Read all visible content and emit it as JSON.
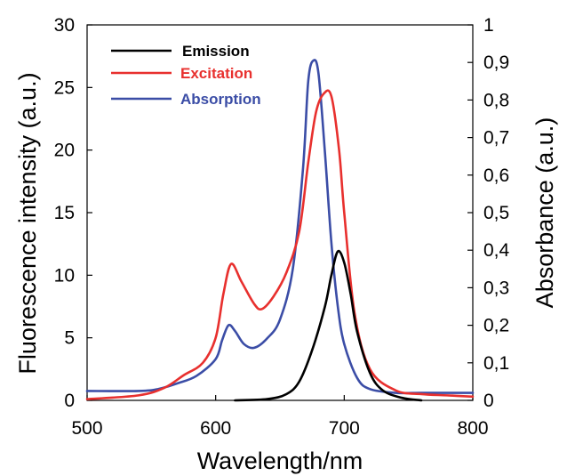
{
  "chart_data": {
    "type": "line",
    "title": "",
    "xlabel": "Wavelength/nm",
    "ylabel_left": "Fluorescence intensity (a.u.)",
    "ylabel_right": "Absorbance (a.u.)",
    "xlim": [
      500,
      800
    ],
    "ylim_left": [
      0,
      30
    ],
    "ylim_right": [
      0,
      1
    ],
    "x_ticks": [
      500,
      600,
      700,
      800
    ],
    "x_tick_labels": [
      "500",
      "600",
      "700",
      "800"
    ],
    "y_left_ticks": [
      0,
      5,
      10,
      15,
      20,
      25,
      30
    ],
    "y_left_tick_labels": [
      "0",
      "5",
      "10",
      "15",
      "20",
      "25",
      "30"
    ],
    "y_right_ticks": [
      0,
      0.1,
      0.2,
      0.3,
      0.4,
      0.5,
      0.6,
      0.7,
      0.8,
      0.9,
      1
    ],
    "y_right_tick_labels": [
      "0",
      "0,1",
      "0,2",
      "0,3",
      "0,4",
      "0,5",
      "0,6",
      "0,7",
      "0,8",
      "0,9",
      "1"
    ],
    "grid": false,
    "legend_position": "top-left",
    "series": [
      {
        "name": "Emission",
        "axis": "left",
        "color": "#000000",
        "x": [
          615,
          640,
          655,
          665,
          675,
          685,
          690,
          695,
          700,
          705,
          710,
          720,
          730,
          745,
          760
        ],
        "y": [
          0,
          0.1,
          0.5,
          1.5,
          4,
          7.5,
          10,
          11.9,
          11,
          8.5,
          5.5,
          2.2,
          0.8,
          0.2,
          0
        ]
      },
      {
        "name": "Excitation",
        "axis": "left",
        "color": "#e8302e",
        "x": [
          500,
          540,
          560,
          575,
          590,
          600,
          606,
          612,
          620,
          630,
          636,
          645,
          655,
          665,
          672,
          678,
          684,
          690,
          696,
          700,
          708,
          720,
          740,
          760,
          780,
          800
        ],
        "y": [
          0.1,
          0.4,
          1.0,
          2.0,
          3.0,
          5.0,
          8.5,
          10.9,
          9.5,
          7.7,
          7.3,
          8.3,
          10.2,
          13.5,
          19.0,
          23.0,
          24.5,
          24.3,
          20.0,
          15.0,
          7.0,
          2.5,
          0.8,
          0.5,
          0.4,
          0.3
        ]
      },
      {
        "name": "Absorption",
        "axis": "right",
        "color": "#3b4da6",
        "x": [
          500,
          540,
          555,
          570,
          585,
          600,
          605,
          610,
          615,
          622,
          630,
          640,
          650,
          660,
          668,
          672,
          676,
          680,
          685,
          690,
          695,
          700,
          710,
          720,
          740,
          760,
          780,
          800
        ],
        "y": [
          0.025,
          0.025,
          0.03,
          0.045,
          0.065,
          0.11,
          0.16,
          0.2,
          0.185,
          0.15,
          0.14,
          0.165,
          0.215,
          0.35,
          0.62,
          0.85,
          0.905,
          0.87,
          0.66,
          0.42,
          0.25,
          0.15,
          0.06,
          0.03,
          0.02,
          0.02,
          0.02,
          0.02
        ]
      }
    ]
  }
}
